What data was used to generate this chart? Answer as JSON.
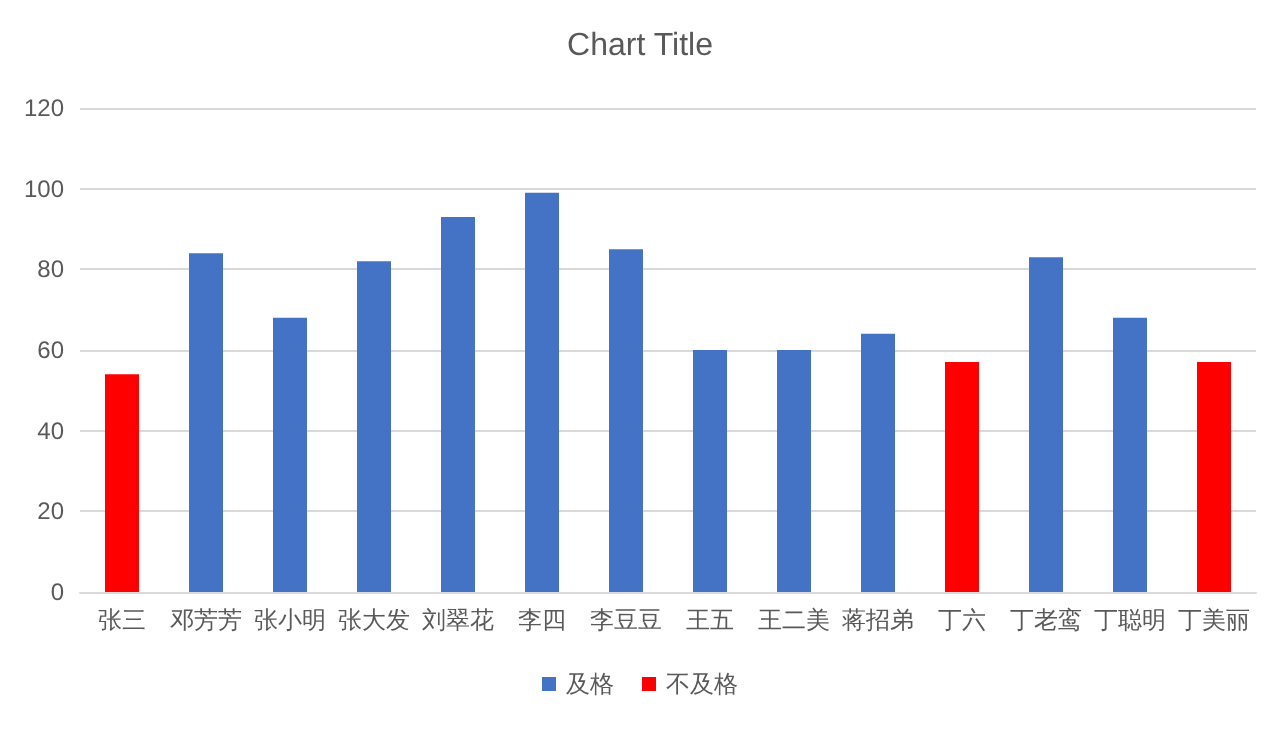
{
  "chart_data": {
    "type": "bar",
    "title": "Chart Title",
    "stacked": true,
    "categories": [
      "张三",
      "邓芳芳",
      "张小明",
      "张大发",
      "刘翠花",
      "李四",
      "李豆豆",
      "王五",
      "王二美",
      "蒋招弟",
      "丁六",
      "丁老鸾",
      "丁聪明",
      "丁美丽"
    ],
    "series": [
      {
        "name": "及格",
        "color": "#4472c4",
        "values": [
          null,
          84,
          68,
          82,
          93,
          99,
          85,
          60,
          60,
          64,
          null,
          83,
          68,
          null
        ]
      },
      {
        "name": "不及格",
        "color": "#ff0000",
        "values": [
          54,
          null,
          null,
          null,
          null,
          null,
          null,
          null,
          null,
          null,
          57,
          null,
          null,
          57
        ]
      }
    ],
    "ylim": [
      0,
      120
    ],
    "yticks": [
      0,
      20,
      40,
      60,
      80,
      100,
      120
    ],
    "grid": "y",
    "legend": "bottom"
  }
}
